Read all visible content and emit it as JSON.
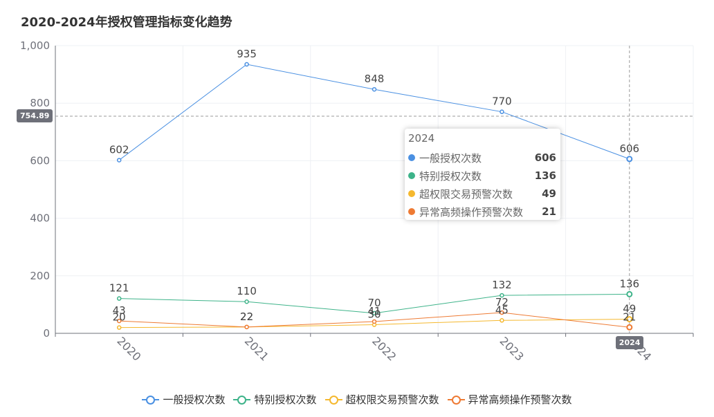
{
  "title": "2020-2024年授权管理指标变化趋势",
  "chart_data": {
    "type": "line",
    "title": "2020-2024年授权管理指标变化趋势",
    "categories": [
      "2020",
      "2021",
      "2022",
      "2023",
      "2024"
    ],
    "ylim": [
      0,
      1000
    ],
    "yticks": [
      "0",
      "200",
      "400",
      "600",
      "800",
      "1,000"
    ],
    "ytick_values": [
      0,
      200,
      400,
      600,
      800,
      1000
    ],
    "grid": true,
    "legend_position": "bottom",
    "series": [
      {
        "name": "一般授权次数",
        "color": "#4A90E2",
        "values": [
          602,
          935,
          848,
          770,
          606
        ]
      },
      {
        "name": "特别授权次数",
        "color": "#3DB389",
        "values": [
          121,
          110,
          70,
          132,
          136
        ]
      },
      {
        "name": "超权限交易预警次数",
        "color": "#F5B82E",
        "values": [
          20,
          22,
          30,
          45,
          49
        ]
      },
      {
        "name": "异常高频操作预警次数",
        "color": "#EE7A33",
        "values": [
          43,
          22,
          41,
          72,
          21
        ]
      }
    ],
    "axis_pointer": {
      "y_value": "754.89",
      "x_value": "2024"
    }
  },
  "tooltip": {
    "title": "2024",
    "rows": [
      {
        "name": "一般授权次数",
        "value": "606",
        "color": "#4A90E2"
      },
      {
        "name": "特别授权次数",
        "value": "136",
        "color": "#3DB389"
      },
      {
        "name": "超权限交易预警次数",
        "value": "49",
        "color": "#F5B82E"
      },
      {
        "name": "异常高频操作预警次数",
        "value": "21",
        "color": "#EE7A33"
      }
    ]
  }
}
